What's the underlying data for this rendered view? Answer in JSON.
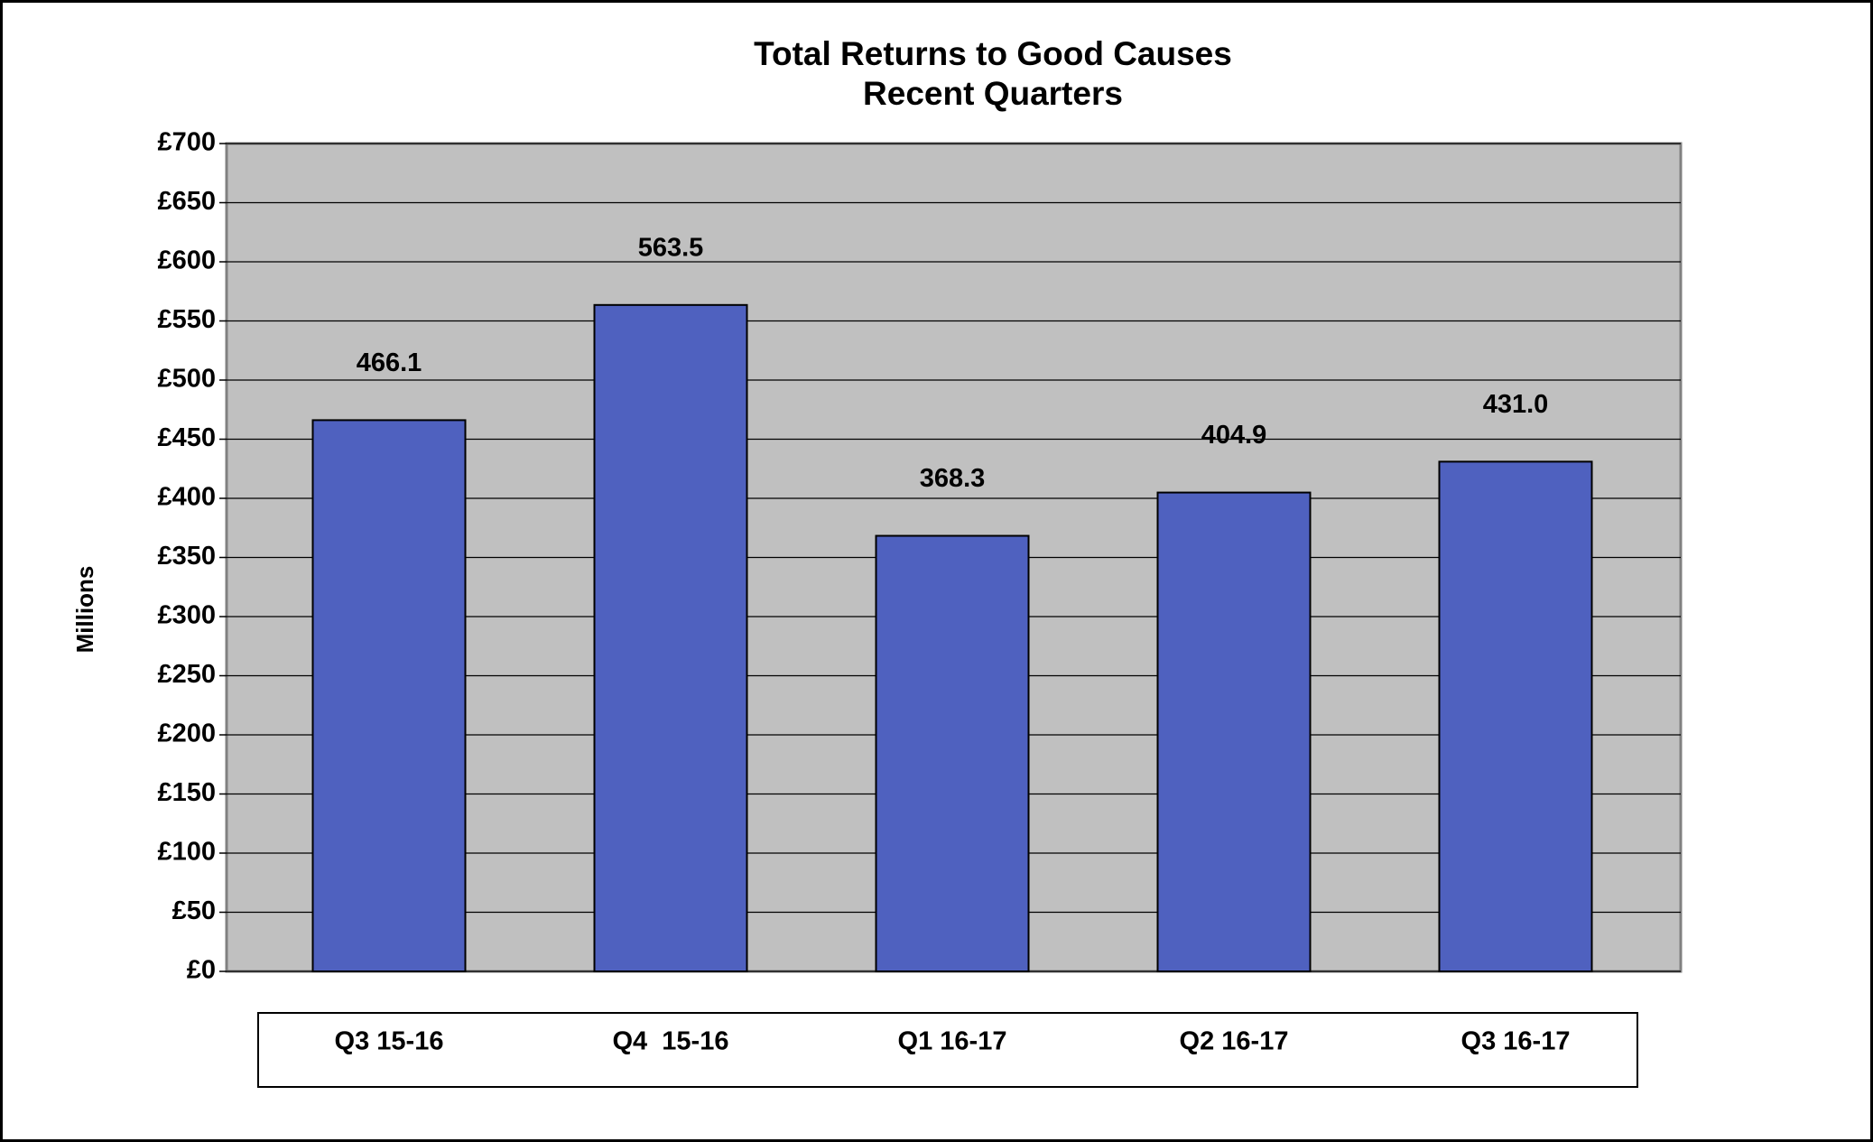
{
  "chart_data": {
    "type": "bar",
    "title": "Total Returns to Good Causes",
    "subtitle": "Recent Quarters",
    "y_label": "Millions",
    "categories": [
      "Q3 15-16",
      "Q4  15-16",
      "Q1 16-17",
      "Q2 16-17",
      "Q3 16-17"
    ],
    "values": [
      466.1,
      563.5,
      368.3,
      404.9,
      431.0
    ],
    "value_labels": [
      "466.1",
      "563.5",
      "368.3",
      "404.9",
      "431.0"
    ],
    "color": "#4f61bf",
    "ylim": [
      0,
      700
    ],
    "yticks": [
      {
        "value": 0,
        "label": "£0"
      },
      {
        "value": 50,
        "label": "£50"
      },
      {
        "value": 100,
        "label": "£100"
      },
      {
        "value": 150,
        "label": "£150"
      },
      {
        "value": 200,
        "label": "£200"
      },
      {
        "value": 250,
        "label": "£250"
      },
      {
        "value": 300,
        "label": "£300"
      },
      {
        "value": 350,
        "label": "£350"
      },
      {
        "value": 400,
        "label": "£400"
      },
      {
        "value": 450,
        "label": "£450"
      },
      {
        "value": 500,
        "label": "£500"
      },
      {
        "value": 550,
        "label": "£550"
      },
      {
        "value": 600,
        "label": "£600"
      },
      {
        "value": 650,
        "label": "£650"
      },
      {
        "value": 700,
        "label": "£700"
      }
    ],
    "grid": true
  }
}
